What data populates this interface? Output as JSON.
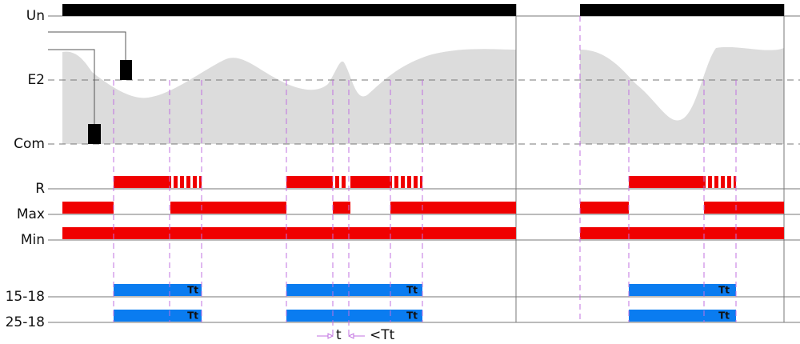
{
  "rows": [
    "Un",
    "E2",
    "Com",
    "R",
    "Max",
    "Min",
    "15-18",
    "25-18"
  ],
  "timer_labels": [
    "Tt",
    "Tt",
    "Tt",
    "Tt",
    "Tt",
    "Tt"
  ],
  "annotations": {
    "t": "t",
    "max_t": "<Tt"
  }
}
